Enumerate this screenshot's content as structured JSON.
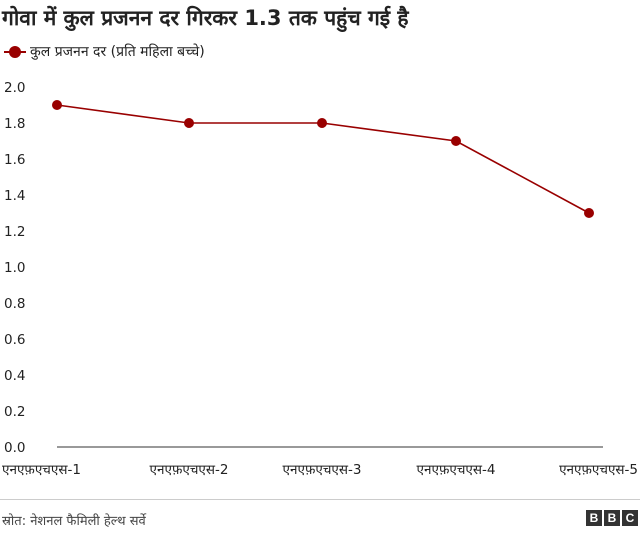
{
  "title": "गोवा में कुल प्रजनन दर गिरकर 1.3 तक पहुंच गई है",
  "legend": {
    "label": "कुल प्रजनन दर (प्रति महिला बच्चे)"
  },
  "colors": {
    "series": "#990000",
    "axis": "#333333",
    "text": "#222222"
  },
  "footer": {
    "source": "स्रोत: नेशनल फैमिली हेल्थ सर्वे",
    "logo_letters": [
      "B",
      "B",
      "C"
    ]
  },
  "chart_data": {
    "type": "line",
    "categories": [
      "एनएफ़एचएस-1",
      "एनएफ़एचएस-2",
      "एनएफ़एचएस-3",
      "एनएफ़एचएस-4",
      "एनएफ़एचएस-5"
    ],
    "series": [
      {
        "name": "कुल प्रजनन दर (प्रति महिला बच्चे)",
        "values": [
          1.9,
          1.8,
          1.8,
          1.7,
          1.3
        ]
      }
    ],
    "ylim": [
      0,
      2.0
    ],
    "yticks": [
      "0.0",
      "0.2",
      "0.4",
      "0.6",
      "0.8",
      "1.0",
      "1.2",
      "1.4",
      "1.6",
      "1.8",
      "2.0"
    ],
    "grid": false,
    "legend_position": "top-left",
    "xlabel": "",
    "ylabel": ""
  }
}
